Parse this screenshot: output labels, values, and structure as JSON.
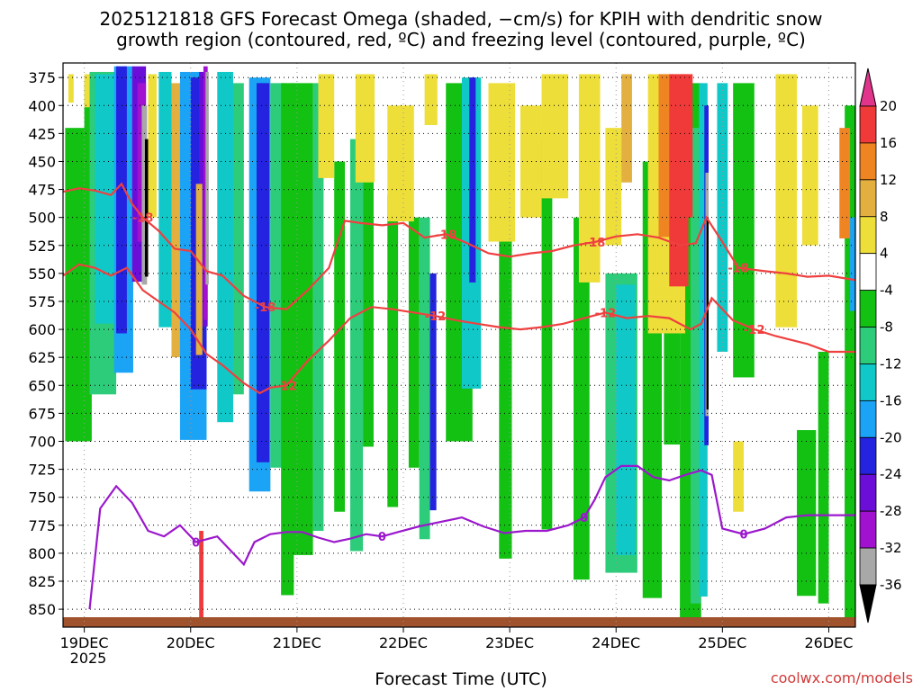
{
  "title_line1": "2025121818 GFS Forecast Omega (shaded, −cm/s) for KPIH with dendritic snow",
  "title_line2": "growth region (contoured, red, ºC) and freezing level (contoured, purple, ºC)",
  "xlabel": "Forecast Time (UTC)",
  "credit": "coolwx.com/models",
  "year_label": "2025",
  "chart_data": {
    "type": "heatmap",
    "title": "2025121818 GFS Forecast Omega (shaded, −cm/s) for KPIH with dendritic snow growth region (contoured, red, ºC) and freezing level (contoured, purple, ºC)",
    "xlabel": "Forecast Time (UTC)",
    "ylabel": "",
    "x_ticks": [
      "19DEC",
      "20DEC",
      "21DEC",
      "22DEC",
      "23DEC",
      "24DEC",
      "25DEC",
      "26DEC"
    ],
    "x_range_days": [
      18.8,
      26.25
    ],
    "y_ticks": [
      375,
      400,
      425,
      450,
      475,
      500,
      525,
      550,
      575,
      600,
      625,
      650,
      675,
      700,
      725,
      750,
      775,
      800,
      825,
      850
    ],
    "y_range_hPa": [
      362,
      866
    ],
    "grid": "dotted",
    "colorbar": {
      "labels": [
        20,
        16,
        12,
        8,
        4,
        -4,
        -8,
        -12,
        -16,
        -20,
        -24,
        -28,
        -32,
        -36
      ],
      "bins": [
        {
          "range": "> 20",
          "color": "#e0358b"
        },
        {
          "range": "16 to 20",
          "color": "#f03a3a"
        },
        {
          "range": "12 to 16",
          "color": "#ef8422"
        },
        {
          "range": "8 to 12",
          "color": "#e3b040"
        },
        {
          "range": "4 to 8",
          "color": "#eede3a"
        },
        {
          "range": "-4 to 4",
          "color": "#ffffff"
        },
        {
          "range": "-8 to -4",
          "color": "#12c112"
        },
        {
          "range": "-12 to -8",
          "color": "#2dcc7a"
        },
        {
          "range": "-16 to -12",
          "color": "#11c8c8"
        },
        {
          "range": "-20 to -16",
          "color": "#1ba3f5"
        },
        {
          "range": "-24 to -20",
          "color": "#2424e0"
        },
        {
          "range": "-28 to -24",
          "color": "#6b0ed8"
        },
        {
          "range": "-32 to -28",
          "color": "#a012d0"
        },
        {
          "range": "-36 to -32",
          "color": "#a8a8a8"
        },
        {
          "range": "< -36",
          "color": "#000000"
        }
      ]
    },
    "contours": [
      {
        "name": "-18",
        "color": "#ef4040",
        "labels": [
          "-18",
          "-18",
          "-18",
          "-18",
          "-18"
        ],
        "x": [
          18.8,
          18.95,
          19.1,
          19.25,
          19.35,
          19.45,
          19.55,
          19.7,
          19.85,
          20.0,
          20.15,
          20.3,
          20.5,
          20.7,
          20.9,
          21.1,
          21.3,
          21.45,
          21.6,
          21.8,
          22.0,
          22.2,
          22.4,
          22.6,
          22.8,
          23.0,
          23.2,
          23.4,
          23.6,
          23.8,
          24.0,
          24.2,
          24.4,
          24.6,
          24.75,
          24.85,
          25.0,
          25.15,
          25.4,
          25.6,
          25.8,
          26.0,
          26.25
        ],
        "y": [
          477,
          474,
          476,
          480,
          470,
          488,
          500,
          512,
          528,
          530,
          548,
          552,
          570,
          580,
          582,
          565,
          545,
          503,
          505,
          507,
          505,
          518,
          515,
          523,
          532,
          535,
          532,
          530,
          525,
          522,
          517,
          515,
          518,
          525,
          523,
          500,
          522,
          545,
          548,
          550,
          553,
          552,
          556
        ]
      },
      {
        "name": "-12",
        "color": "#ef4040",
        "labels": [
          "-12",
          "-12",
          "-12",
          "-12",
          "-12"
        ],
        "x": [
          18.8,
          18.95,
          19.1,
          19.25,
          19.4,
          19.55,
          19.7,
          19.85,
          20.0,
          20.15,
          20.3,
          20.5,
          20.65,
          20.75,
          20.9,
          21.1,
          21.3,
          21.5,
          21.7,
          21.9,
          22.1,
          22.3,
          22.5,
          22.7,
          22.9,
          23.1,
          23.3,
          23.5,
          23.7,
          23.9,
          24.1,
          24.3,
          24.5,
          24.7,
          24.8,
          24.9,
          25.1,
          25.3,
          25.5,
          25.8,
          26.0,
          26.25
        ],
        "y": [
          552,
          542,
          545,
          552,
          545,
          565,
          575,
          585,
          600,
          622,
          632,
          648,
          657,
          652,
          650,
          628,
          610,
          590,
          580,
          582,
          585,
          588,
          592,
          595,
          598,
          600,
          598,
          595,
          590,
          585,
          590,
          588,
          590,
          600,
          595,
          572,
          592,
          600,
          606,
          613,
          620,
          620
        ]
      },
      {
        "name": "0",
        "color": "#9b18cc",
        "labels": [
          "0",
          "0",
          "0",
          "0",
          "0"
        ],
        "x": [
          19.05,
          19.15,
          19.3,
          19.45,
          19.6,
          19.75,
          19.9,
          20.05,
          20.25,
          20.4,
          20.5,
          20.6,
          20.75,
          20.9,
          21.05,
          21.2,
          21.35,
          21.5,
          21.65,
          21.8,
          21.95,
          22.15,
          22.35,
          22.55,
          22.75,
          22.95,
          23.15,
          23.35,
          23.55,
          23.7,
          23.8,
          23.9,
          24.05,
          24.2,
          24.35,
          24.5,
          24.65,
          24.8,
          24.9,
          25.0,
          25.2,
          25.4,
          25.6,
          25.8,
          26.0,
          26.25
        ],
        "y": [
          850,
          760,
          740,
          755,
          780,
          785,
          775,
          790,
          785,
          800,
          810,
          790,
          783,
          781,
          781,
          786,
          790,
          787,
          783,
          785,
          781,
          776,
          772,
          768,
          776,
          782,
          780,
          780,
          775,
          768,
          752,
          732,
          722,
          722,
          732,
          735,
          730,
          726,
          730,
          778,
          783,
          778,
          768,
          766,
          766,
          766
        ]
      }
    ]
  }
}
